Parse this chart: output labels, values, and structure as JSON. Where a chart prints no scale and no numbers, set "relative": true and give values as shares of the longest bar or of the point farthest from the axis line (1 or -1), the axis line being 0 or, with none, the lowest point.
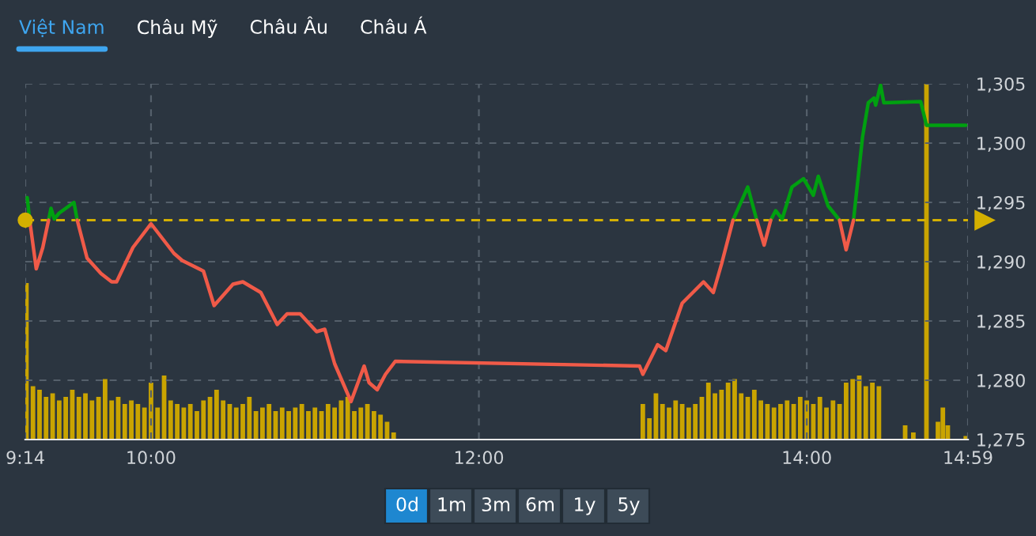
{
  "chart_data": [
    {
      "type": "line",
      "annotations": [
        "Việt Nam",
        "Châu Mỹ",
        "Châu Âu",
        "Châu Á"
      ],
      "xlim": [
        9.2333,
        14.9833
      ],
      "xticks": [
        {
          "value": 9.2333,
          "label": "9:14"
        },
        {
          "value": 10,
          "label": "10:00"
        },
        {
          "value": 12,
          "label": "12:00"
        },
        {
          "value": 14,
          "label": "14:00"
        },
        {
          "value": 14.9833,
          "label": "14:59"
        }
      ],
      "ylim": [
        1275,
        1305
      ],
      "yticks": [
        {
          "value": 1275,
          "label": "1,275"
        },
        {
          "value": 1280,
          "label": "1,280"
        },
        {
          "value": 1285,
          "label": "1,285"
        },
        {
          "value": 1290,
          "label": "1,290"
        },
        {
          "value": 1295,
          "label": "1,295"
        },
        {
          "value": 1300,
          "label": "1,300"
        },
        {
          "value": 1305,
          "label": "1,305"
        }
      ],
      "grid": true,
      "marker": "none",
      "line_style": "solid",
      "ref_lines": [
        {
          "axis": "y",
          "value": 1293.5,
          "label": null,
          "color": "#d4b000",
          "line_style": "dashed"
        }
      ],
      "series": [
        {
          "color": "#00a010",
          "x": [
            9.245,
            9.26,
            9.3,
            9.375,
            9.39,
            9.41,
            9.44,
            9.53,
            9.55,
            11.0,
            13.55,
            13.64,
            13.695,
            13.74,
            13.78,
            13.81,
            13.85,
            13.91,
            13.98,
            14.04,
            14.07,
            14.13,
            14.2,
            14.24,
            14.285,
            14.34,
            14.375,
            14.41,
            14.42,
            14.45,
            14.47,
            14.695,
            14.73,
            14.97
          ],
          "values": [
            1295.4,
            1293.5,
            null,
            1293.5,
            1294.5,
            1293.6,
            1294.1,
            1295.0,
            1293.5,
            null,
            1293.5,
            1296.3,
            1293.5,
            null,
            1293.5,
            1294.3,
            1293.6,
            1296.3,
            1297.0,
            1295.6,
            1297.2,
            1294.7,
            1293.5,
            null,
            1293.5,
            1300.5,
            1303.4,
            1303.8,
            1303.2,
            1304.9,
            1303.4,
            1303.5,
            1301.5,
            1301.5
          ]
        },
        {
          "color": "#f05a48",
          "x": [
            9.26,
            9.3,
            9.34,
            9.375,
            9.45,
            9.55,
            9.61,
            9.695,
            9.76,
            9.79,
            9.89,
            10.0,
            10.14,
            10.19,
            10.32,
            10.385,
            10.5,
            10.56,
            10.67,
            10.77,
            10.83,
            10.91,
            11.01,
            11.06,
            11.12,
            11.22,
            11.3,
            11.33,
            11.38,
            11.43,
            11.49,
            12.98,
            13.0,
            13.09,
            13.14,
            13.24,
            13.37,
            13.43,
            13.48,
            13.55,
            13.64,
            13.695,
            13.74,
            13.78,
            14.0,
            14.2,
            14.24,
            14.285
          ],
          "values": [
            1293.5,
            1289.4,
            1291.2,
            1293.5,
            null,
            1293.5,
            1290.3,
            1289.0,
            1288.3,
            1288.3,
            1291.2,
            1293.2,
            1290.7,
            1290.1,
            1289.2,
            1286.3,
            1288.1,
            1288.3,
            1287.4,
            1284.7,
            1285.6,
            1285.6,
            1284.1,
            1284.3,
            1281.4,
            1278.2,
            1281.2,
            1279.8,
            1279.2,
            1280.5,
            1281.6,
            1281.2,
            1280.5,
            1283.0,
            1282.5,
            1286.5,
            1288.3,
            1287.4,
            1289.8,
            1293.5,
            null,
            1293.5,
            1291.4,
            1293.5,
            null,
            1293.5,
            1291.0,
            1293.5
          ]
        }
      ]
    },
    {
      "type": "bar",
      "relative": true,
      "tick_labels": false,
      "color": "#c9a400",
      "annotations": [
        "0d",
        "1m",
        "3m",
        "6m",
        "1y",
        "5y"
      ],
      "xlim": [
        9.2333,
        14.9833
      ],
      "x": [
        9.24,
        9.28,
        9.32,
        9.36,
        9.4,
        9.44,
        9.48,
        9.52,
        9.56,
        9.6,
        9.64,
        9.68,
        9.72,
        9.76,
        9.8,
        9.84,
        9.88,
        9.92,
        9.96,
        10.0,
        10.04,
        10.08,
        10.12,
        10.16,
        10.2,
        10.24,
        10.28,
        10.32,
        10.36,
        10.4,
        10.44,
        10.48,
        10.52,
        10.56,
        10.6,
        10.64,
        10.68,
        10.72,
        10.76,
        10.8,
        10.84,
        10.88,
        10.92,
        10.96,
        11.0,
        11.04,
        11.08,
        11.12,
        11.16,
        11.2,
        11.24,
        11.28,
        11.32,
        11.36,
        11.4,
        11.44,
        11.48,
        13.0,
        13.04,
        13.08,
        13.12,
        13.16,
        13.2,
        13.24,
        13.28,
        13.32,
        13.36,
        13.4,
        13.44,
        13.48,
        13.52,
        13.56,
        13.6,
        13.64,
        13.68,
        13.72,
        13.76,
        13.8,
        13.84,
        13.88,
        13.92,
        13.96,
        14.0,
        14.04,
        14.08,
        14.12,
        14.16,
        14.2,
        14.24,
        14.28,
        14.32,
        14.36,
        14.4,
        14.44,
        14.6,
        14.65,
        14.73,
        14.8,
        14.83,
        14.86,
        14.97
      ],
      "values": [
        0.44,
        0.15,
        0.14,
        0.12,
        0.13,
        0.11,
        0.12,
        0.14,
        0.12,
        0.13,
        0.11,
        0.12,
        0.17,
        0.11,
        0.12,
        0.1,
        0.11,
        0.1,
        0.09,
        0.16,
        0.09,
        0.18,
        0.11,
        0.1,
        0.09,
        0.1,
        0.08,
        0.11,
        0.12,
        0.14,
        0.11,
        0.1,
        0.09,
        0.1,
        0.12,
        0.08,
        0.09,
        0.1,
        0.08,
        0.09,
        0.08,
        0.09,
        0.1,
        0.08,
        0.09,
        0.08,
        0.1,
        0.09,
        0.11,
        0.12,
        0.08,
        0.09,
        0.1,
        0.08,
        0.07,
        0.05,
        0.02,
        0.1,
        0.06,
        0.13,
        0.1,
        0.09,
        0.11,
        0.1,
        0.09,
        0.1,
        0.12,
        0.16,
        0.13,
        0.14,
        0.16,
        0.17,
        0.13,
        0.12,
        0.14,
        0.11,
        0.1,
        0.09,
        0.1,
        0.11,
        0.1,
        0.12,
        0.11,
        0.1,
        0.12,
        0.09,
        0.11,
        0.1,
        0.16,
        0.17,
        0.18,
        0.15,
        0.16,
        0.15,
        0.04,
        0.02,
        1.0,
        0.05,
        0.09,
        0.04,
        0.01
      ]
    }
  ]
}
